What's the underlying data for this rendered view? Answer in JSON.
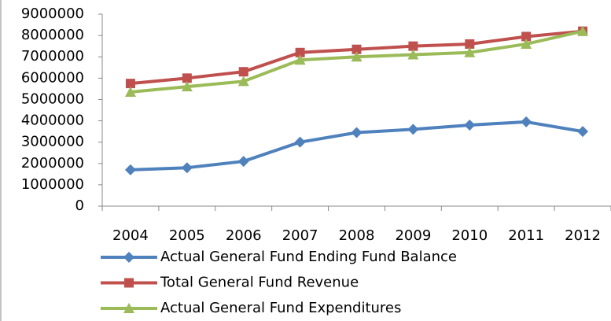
{
  "chart_data": {
    "type": "line",
    "categories": [
      "2004",
      "2005",
      "2006",
      "2007",
      "2008",
      "2009",
      "2010",
      "2011",
      "2012"
    ],
    "series": [
      {
        "name": "Actual General Fund Ending Fund Balance",
        "color": "#4f81bd",
        "marker": "diamond",
        "values": [
          1700000,
          1800000,
          2100000,
          3000000,
          3450000,
          3600000,
          3800000,
          3950000,
          3500000
        ]
      },
      {
        "name": "Total General Fund Revenue",
        "color": "#c0504d",
        "marker": "square",
        "values": [
          5750000,
          6000000,
          6300000,
          7200000,
          7350000,
          7500000,
          7600000,
          7950000,
          8200000
        ]
      },
      {
        "name": "Actual General Fund Expenditures",
        "color": "#9bbb59",
        "marker": "triangle",
        "values": [
          5350000,
          5600000,
          5850000,
          6850000,
          7000000,
          7100000,
          7200000,
          7600000,
          8200000
        ]
      }
    ],
    "ylim": [
      0,
      9000000
    ],
    "yticks": [
      0,
      1000000,
      2000000,
      3000000,
      4000000,
      5000000,
      6000000,
      7000000,
      8000000,
      9000000
    ],
    "grid": false
  }
}
